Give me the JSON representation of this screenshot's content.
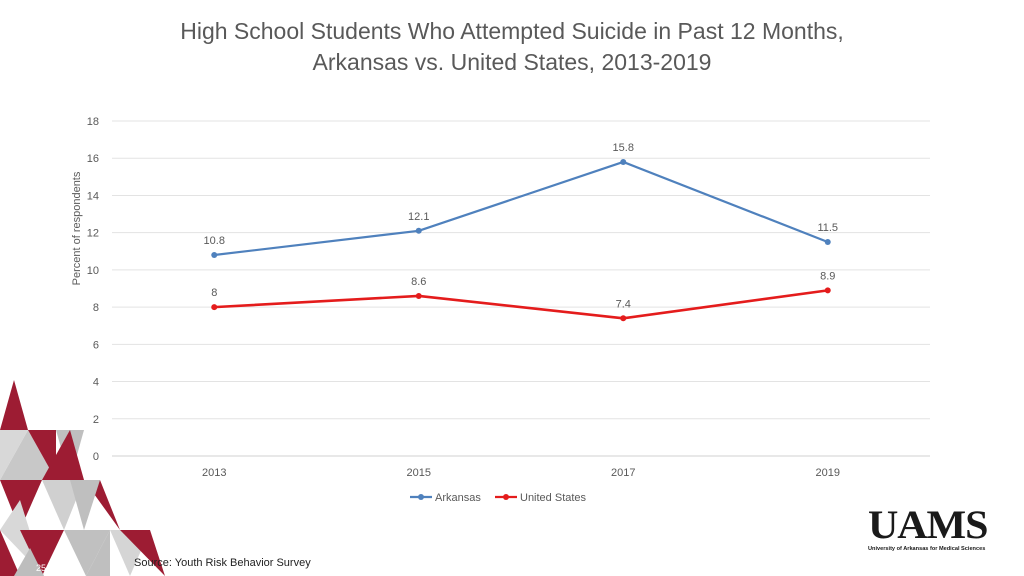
{
  "chart_data": {
    "type": "line",
    "title_line1": "High School Students Who Attempted Suicide in Past 12 Months,",
    "title_line2": "Arkansas vs. United States, 2013-2019",
    "ylabel": "Percent of respondents",
    "xlabel": "",
    "categories": [
      "2013",
      "2015",
      "2017",
      "2019"
    ],
    "ylim": [
      0,
      18
    ],
    "yticks": [
      0,
      2,
      4,
      6,
      8,
      10,
      12,
      14,
      16,
      18
    ],
    "grid": true,
    "legend_position": "bottom",
    "series": [
      {
        "name": "Arkansas",
        "values": [
          10.8,
          12.1,
          15.8,
          11.5
        ],
        "labels": [
          "10.8",
          "12.1",
          "15.8",
          "11.5"
        ],
        "color": "#4f81bd"
      },
      {
        "name": "United States",
        "values": [
          8,
          8.6,
          7.4,
          8.9
        ],
        "labels": [
          "8",
          "8.6",
          "7.4",
          "8.9"
        ],
        "color": "#e41c1c"
      }
    ]
  },
  "footer": {
    "source": "Source: Youth Risk Behavior Survey",
    "page_number": "25"
  },
  "logo": {
    "mark": "UAMS",
    "subtitle": "University of Arkansas for Medical Sciences"
  }
}
